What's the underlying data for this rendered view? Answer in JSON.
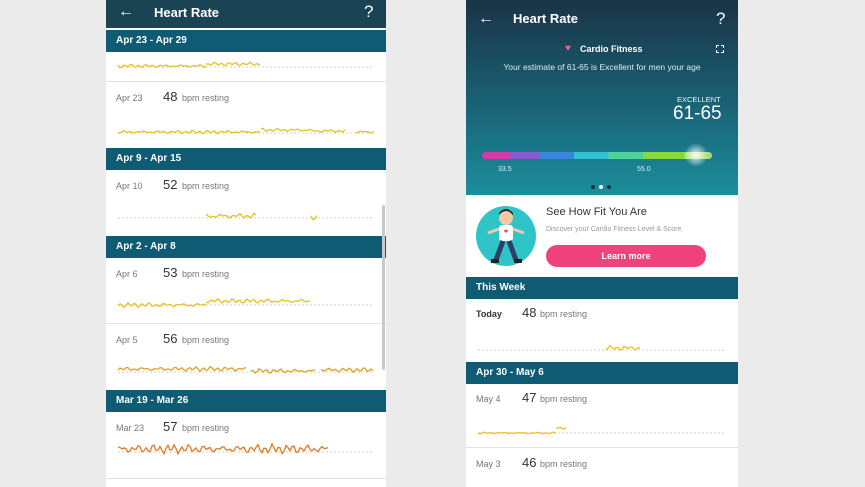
{
  "left_screen": {
    "header": {
      "back": "←",
      "title": "Heart Rate",
      "help": "?"
    },
    "sections": [
      {
        "label": "Apr 23 - Apr 29",
        "rows": [
          {
            "date": "Apr 23",
            "bpm": 48,
            "unit": "bpm resting"
          }
        ]
      },
      {
        "label": "Apr 9 - Apr 15",
        "rows": [
          {
            "date": "Apr 10",
            "bpm": 52,
            "unit": "bpm resting"
          }
        ]
      },
      {
        "label": "Apr 2 - Apr 8",
        "rows": [
          {
            "date": "Apr 6",
            "bpm": 53,
            "unit": "bpm resting"
          },
          {
            "date": "Apr 5",
            "bpm": 56,
            "unit": "bpm resting"
          }
        ]
      },
      {
        "label": "Mar 19 - Mar 26",
        "rows": [
          {
            "date": "Mar 23",
            "bpm": 57,
            "unit": "bpm resting"
          }
        ]
      }
    ]
  },
  "right_screen": {
    "header": {
      "back": "←",
      "title": "Heart Rate",
      "help": "?"
    },
    "cardio": {
      "icon": "♥",
      "title": "Cardio Fitness",
      "description": "Your estimate of 61-65 is Excellent for men your age",
      "level": "EXCELLENT",
      "range": "61-65",
      "scale_labels": [
        "33.5",
        "55.0"
      ]
    },
    "card": {
      "title": "See How Fit You Are",
      "subtitle": "Discover your Cardio Fitness Level & Score.",
      "button": "Learn more"
    },
    "sections": [
      {
        "label": "This Week",
        "rows": [
          {
            "date": "Today",
            "bpm": 48,
            "unit": "bpm resting"
          }
        ]
      },
      {
        "label": "Apr 30 - May 6",
        "rows": [
          {
            "date": "May 4",
            "bpm": 47,
            "unit": "bpm resting"
          },
          {
            "date": "May 3",
            "bpm": 46,
            "unit": "bpm resting"
          }
        ]
      }
    ]
  }
}
